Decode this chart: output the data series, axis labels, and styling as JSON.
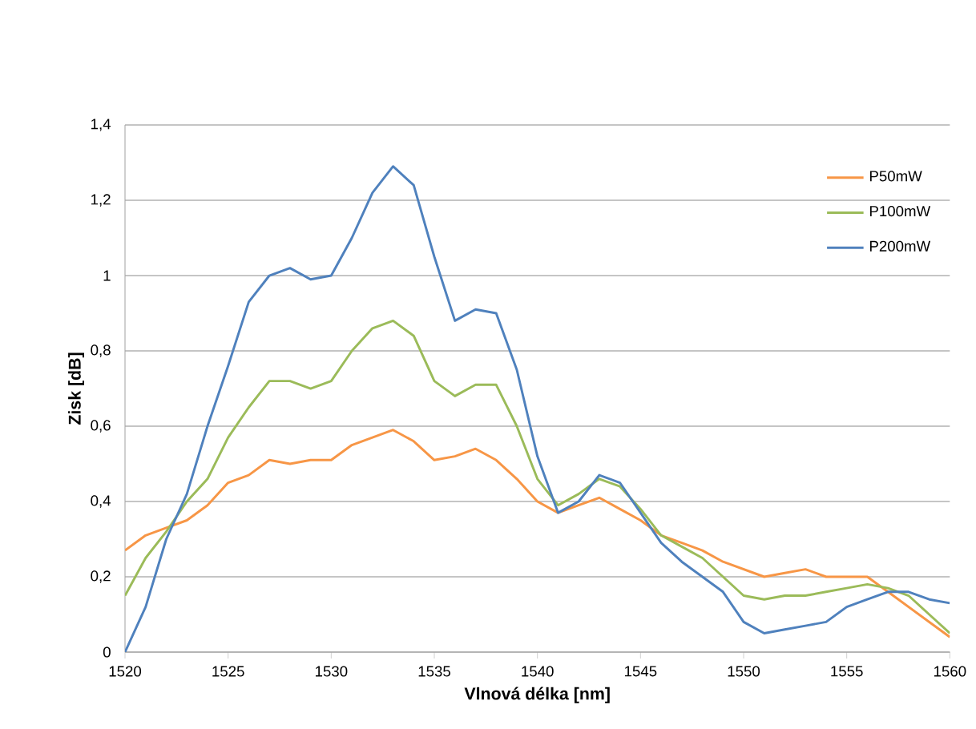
{
  "chart_data": {
    "type": "line",
    "xlabel": "Vlnová délka [nm]",
    "ylabel": "Zisk [dB]",
    "x": [
      1520,
      1521,
      1522,
      1523,
      1524,
      1525,
      1526,
      1527,
      1528,
      1529,
      1530,
      1531,
      1532,
      1533,
      1534,
      1535,
      1536,
      1537,
      1538,
      1539,
      1540,
      1541,
      1542,
      1543,
      1544,
      1545,
      1546,
      1547,
      1548,
      1549,
      1550,
      1551,
      1552,
      1553,
      1554,
      1555,
      1556,
      1557,
      1558,
      1559,
      1560
    ],
    "series": [
      {
        "name": "P50mW",
        "color": "#f79646",
        "values": [
          0.27,
          0.31,
          0.33,
          0.35,
          0.39,
          0.45,
          0.47,
          0.51,
          0.5,
          0.51,
          0.51,
          0.55,
          0.57,
          0.59,
          0.56,
          0.51,
          0.52,
          0.54,
          0.51,
          0.46,
          0.4,
          0.37,
          0.39,
          0.41,
          0.38,
          0.35,
          0.31,
          0.29,
          0.27,
          0.24,
          0.22,
          0.2,
          0.21,
          0.22,
          0.2,
          0.2,
          0.2,
          0.16,
          0.12,
          0.08,
          0.04
        ]
      },
      {
        "name": "P100mW",
        "color": "#9bbb59",
        "values": [
          0.15,
          0.25,
          0.32,
          0.4,
          0.46,
          0.57,
          0.65,
          0.72,
          0.72,
          0.7,
          0.72,
          0.8,
          0.86,
          0.88,
          0.84,
          0.72,
          0.68,
          0.71,
          0.71,
          0.6,
          0.46,
          0.39,
          0.42,
          0.46,
          0.44,
          0.38,
          0.31,
          0.28,
          0.25,
          0.2,
          0.15,
          0.14,
          0.15,
          0.15,
          0.16,
          0.17,
          0.18,
          0.17,
          0.15,
          0.1,
          0.05
        ]
      },
      {
        "name": "P200mW",
        "color": "#4f81bd",
        "values": [
          0.0,
          0.12,
          0.3,
          0.42,
          0.6,
          0.76,
          0.93,
          1.0,
          1.02,
          0.99,
          1.0,
          1.1,
          1.22,
          1.29,
          1.24,
          1.05,
          0.88,
          0.91,
          0.9,
          0.75,
          0.52,
          0.37,
          0.4,
          0.47,
          0.45,
          0.37,
          0.29,
          0.24,
          0.2,
          0.16,
          0.08,
          0.05,
          0.06,
          0.07,
          0.08,
          0.12,
          0.14,
          0.16,
          0.16,
          0.14,
          0.13
        ]
      }
    ],
    "xlim": [
      1520,
      1560
    ],
    "xticks": [
      1520,
      1525,
      1530,
      1535,
      1540,
      1545,
      1550,
      1555,
      1560
    ],
    "ylim": [
      0,
      1.4
    ],
    "yticks": [
      0,
      {
        "value": 0.2,
        "label": "0,2"
      },
      {
        "value": 0.4,
        "label": "0,4"
      },
      {
        "value": 0.6,
        "label": "0,6"
      },
      {
        "value": 0.8,
        "label": "0,8"
      },
      1,
      {
        "value": 1.2,
        "label": "1,2"
      },
      {
        "value": 1.4,
        "label": "1,4"
      }
    ],
    "grid": "y",
    "legend": "top right",
    "marker": "none",
    "line_style": "solid"
  }
}
